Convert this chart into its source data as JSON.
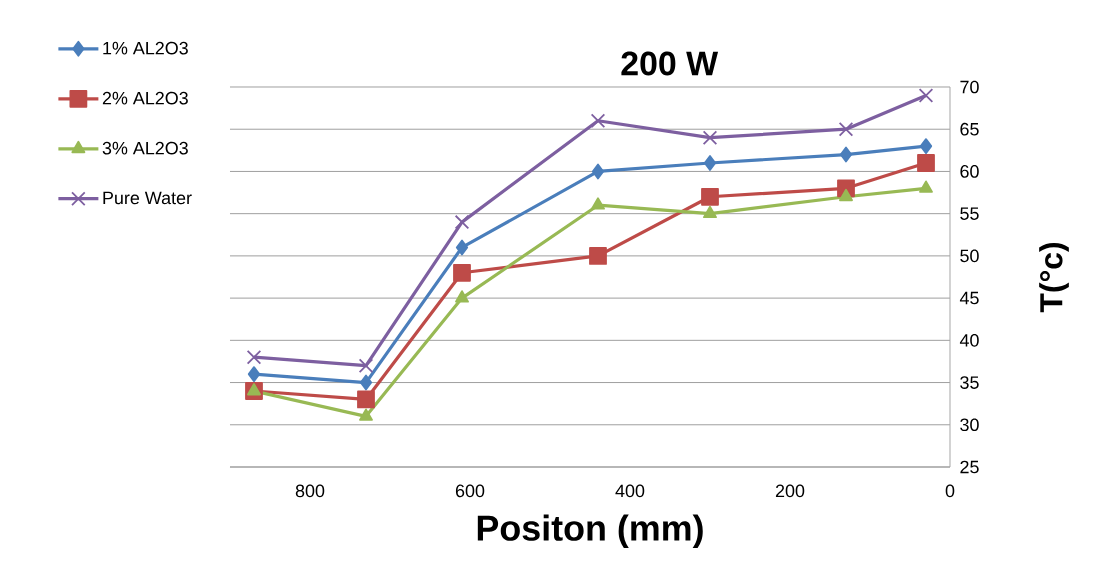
{
  "chart_data": {
    "type": "line",
    "title": "200 W",
    "xlabel": "Positon (mm)",
    "ylabel": "T(°c)",
    "x": [
      870,
      730,
      610,
      440,
      300,
      130,
      30
    ],
    "series": [
      {
        "name": "1% AL2O3",
        "color": "#4a7ebb",
        "marker": "diamond",
        "values": [
          36,
          35,
          51,
          60,
          61,
          62,
          63
        ]
      },
      {
        "name": "2% AL2O3",
        "color": "#be4b48",
        "marker": "square",
        "values": [
          34,
          33,
          48,
          50,
          57,
          58,
          61
        ]
      },
      {
        "name": "3% AL2O3",
        "color": "#98b954",
        "marker": "triangle",
        "values": [
          34,
          31,
          45,
          56,
          55,
          57,
          58
        ]
      },
      {
        "name": "Pure Water",
        "color": "#7d5fa0",
        "marker": "cross",
        "values": [
          38,
          37,
          54,
          66,
          64,
          65,
          69
        ]
      }
    ],
    "xlim": [
      900,
      0
    ],
    "xticks": [
      800,
      600,
      400,
      200,
      0
    ],
    "ylim": [
      25,
      70
    ],
    "yticks": [
      25,
      30,
      35,
      40,
      45,
      50,
      55,
      60,
      65,
      70
    ],
    "grid": "y",
    "legend": "top left",
    "line_style": "solid"
  }
}
